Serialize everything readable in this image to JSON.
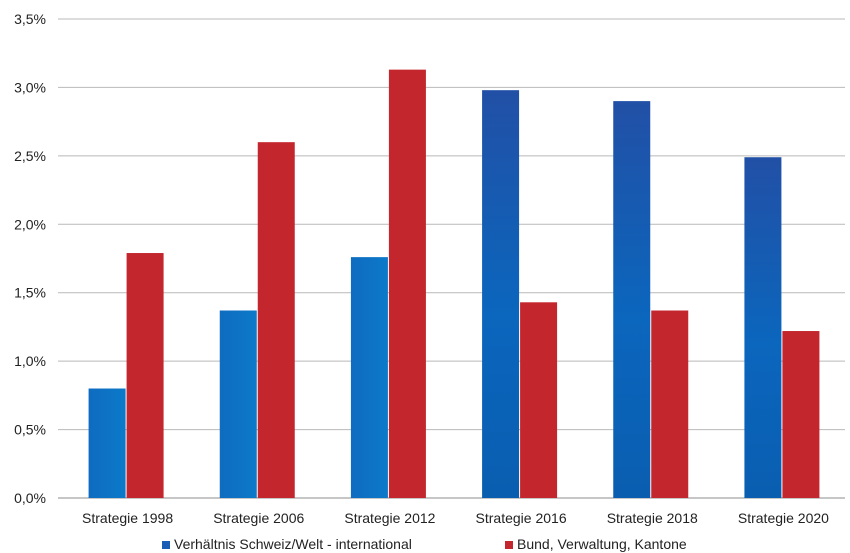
{
  "chart_data": {
    "type": "bar",
    "categories": [
      "Strategie 1998",
      "Strategie 2006",
      "Strategie 2012",
      "Strategie 2016",
      "Strategie 2018",
      "Strategie 2020"
    ],
    "series": [
      {
        "name": "Verhältnis Schweiz/Welt - international",
        "color": "#1a6dbf",
        "values": [
          0.8,
          1.37,
          1.76,
          2.98,
          2.9,
          2.49
        ]
      },
      {
        "name": "Bund, Verwaltung, Kantone",
        "color": "#c4262e",
        "values": [
          1.79,
          2.6,
          3.13,
          1.43,
          1.37,
          1.22
        ]
      }
    ],
    "title": "",
    "xlabel": "",
    "ylabel": "",
    "ylim": [
      0,
      3.5
    ],
    "yticks": [
      "0,0%",
      "0,5%",
      "1,0%",
      "1,5%",
      "2,0%",
      "2,5%",
      "3,0%",
      "3,5%"
    ],
    "grid": true,
    "legend_position": "bottom"
  }
}
